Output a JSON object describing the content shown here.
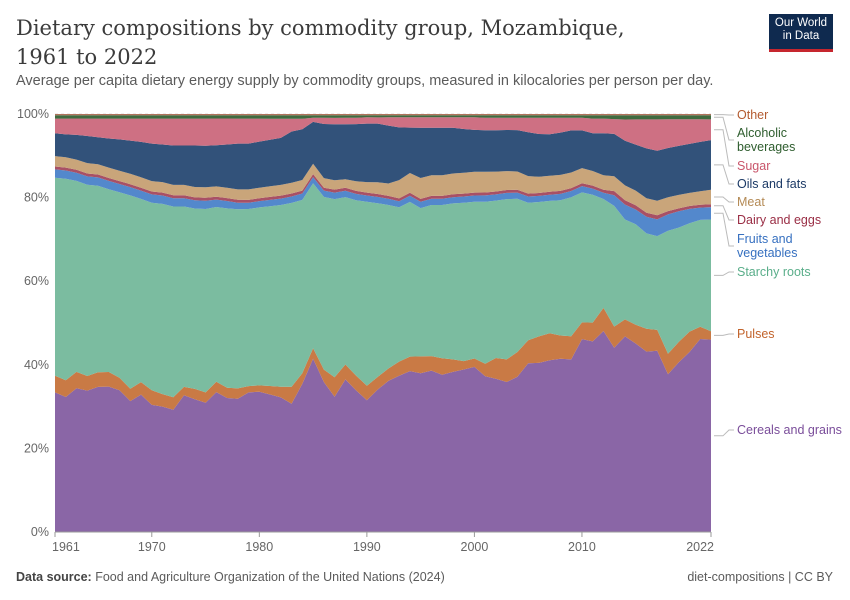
{
  "header": {
    "title": "Dietary compositions by commodity group, Mozambique, 1961 to 2022",
    "subtitle": "Average per capita dietary energy supply by commodity groups, measured in kilocalories per person per day.",
    "logo_line1": "Our World",
    "logo_line2": "in Data"
  },
  "footer": {
    "source_label": "Data source:",
    "source_text": "Food and Agriculture Organization of the United Nations (2024)",
    "right": "diet-compositions | CC BY"
  },
  "chart_data": {
    "type": "area",
    "stacked": "percent",
    "title": "Dietary compositions by commodity group, Mozambique, 1961 to 2022",
    "ylim": [
      0,
      100
    ],
    "y_ticks": [
      "0%",
      "20%",
      "40%",
      "60%",
      "80%",
      "100%"
    ],
    "x_ticks": [
      "1961",
      "1970",
      "1980",
      "1990",
      "2000",
      "2010",
      "2022"
    ],
    "grid": "horizontal dashed",
    "legend": "right, inline labels",
    "x_start": 1961,
    "x_end": 2022,
    "series": [
      {
        "name": "Cereals and grains",
        "color": "#8a66a6",
        "label_color": "#7a4d9a",
        "values": [
          33.5,
          32.5,
          35,
          34,
          35,
          35,
          34,
          31.5,
          33,
          30.5,
          30,
          29.5,
          33,
          32,
          31,
          34,
          32.5,
          32,
          33.5,
          33.5,
          32.5,
          31.5,
          30,
          35,
          41.5,
          36,
          31.5,
          36,
          33.5,
          31.5,
          34,
          36.5,
          38.5,
          39,
          38,
          39,
          38,
          38.5,
          39,
          39.5,
          37.5,
          37,
          36.5,
          37.5,
          40.5,
          41.5,
          41.5,
          41,
          41,
          46,
          45.5,
          48,
          43.5,
          46,
          45,
          43.5,
          43.5,
          38.5,
          41.5,
          44,
          47,
          46.5
        ]
      },
      {
        "name": "Pulses",
        "color": "#c97a45",
        "label_color": "#c2632b",
        "values": [
          4,
          4,
          4,
          3.5,
          3.5,
          3.5,
          3,
          3,
          3,
          3.5,
          3,
          3,
          2,
          2.5,
          2.5,
          2.5,
          2.5,
          2.5,
          1.5,
          1.5,
          2,
          2.5,
          4,
          2.5,
          2.5,
          3,
          4.5,
          3.5,
          3.5,
          3.5,
          3,
          3,
          3.5,
          3.5,
          4,
          3.5,
          4,
          3,
          2,
          2,
          3,
          5,
          5.5,
          6,
          5.5,
          6.5,
          6.5,
          5.5,
          5.5,
          4,
          4.5,
          5.5,
          5,
          4,
          4.5,
          5.5,
          5,
          5,
          5,
          5,
          3,
          2
        ]
      },
      {
        "name": "Starchy roots",
        "color": "#7bbca0",
        "label_color": "#5aae8a",
        "values": [
          47.5,
          48.5,
          46.5,
          46,
          45,
          44,
          44.5,
          46.5,
          44,
          45,
          45.5,
          46,
          43.5,
          43.5,
          44,
          42.5,
          43.5,
          43,
          42.5,
          42.5,
          42.5,
          42.5,
          43,
          41,
          39.5,
          41.5,
          41.5,
          39.5,
          41.5,
          44,
          41.5,
          39.5,
          38,
          37.5,
          35.5,
          36.5,
          37,
          37.5,
          38,
          37.5,
          39,
          38,
          39,
          37,
          33,
          33,
          32,
          32,
          33,
          31,
          30.5,
          26,
          28.5,
          23.5,
          24,
          23,
          22.5,
          30,
          28,
          26.5,
          26,
          27
        ]
      },
      {
        "name": "Fruits and vegetables",
        "color": "#5388cc",
        "label_color": "#3670c0",
        "values": [
          2,
          2,
          2,
          2,
          2,
          2,
          2,
          2,
          2,
          2,
          2,
          2,
          2,
          2,
          2,
          1.8,
          1.8,
          1.6,
          1.5,
          1.5,
          1.5,
          1.5,
          1.5,
          1.5,
          1.5,
          1.5,
          1.5,
          1.5,
          1.5,
          1.5,
          1.5,
          1.5,
          1.5,
          1.5,
          1.5,
          1.5,
          1.5,
          1.5,
          1.5,
          1.5,
          1.5,
          1.5,
          1.5,
          1.5,
          1.5,
          1.5,
          1.5,
          1.5,
          1.5,
          1.5,
          1.5,
          1.5,
          2.5,
          3.5,
          3.5,
          4,
          4,
          4,
          4,
          3.5,
          3,
          3
        ]
      },
      {
        "name": "Dairy and eggs",
        "color": "#a85065",
        "label_color": "#9a2e45",
        "values": [
          0.7,
          0.7,
          0.7,
          0.7,
          0.7,
          0.7,
          0.7,
          0.7,
          0.7,
          0.7,
          0.7,
          0.7,
          0.7,
          0.7,
          0.7,
          0.7,
          0.7,
          0.7,
          0.7,
          0.7,
          0.7,
          0.7,
          0.7,
          0.7,
          0.7,
          0.7,
          0.7,
          0.7,
          0.7,
          0.7,
          0.7,
          0.7,
          0.7,
          0.7,
          0.7,
          0.7,
          0.7,
          0.7,
          0.7,
          0.7,
          0.7,
          0.7,
          0.7,
          0.7,
          0.7,
          0.7,
          0.7,
          0.7,
          0.7,
          0.7,
          0.7,
          0.7,
          1,
          1,
          1,
          1,
          1,
          0.8,
          0.7,
          0.7,
          0.7,
          0.7
        ]
      },
      {
        "name": "Meat",
        "color": "#c9a57a",
        "label_color": "#b48a55",
        "values": [
          2.5,
          2.5,
          2.5,
          2.5,
          2.5,
          2.5,
          2.5,
          2.5,
          2.5,
          2.5,
          2.5,
          2.5,
          2.5,
          2.5,
          2.5,
          2.5,
          2.5,
          2.5,
          2.5,
          2.5,
          2.5,
          2.5,
          2.5,
          2.5,
          2.5,
          2.3,
          2.2,
          2,
          2.3,
          2.5,
          2.8,
          3,
          4.5,
          4.8,
          5,
          5,
          5,
          5,
          5,
          5,
          5,
          4.8,
          4.6,
          4.4,
          4.2,
          4,
          3.9,
          3.8,
          3.7,
          3.6,
          3.5,
          3.5,
          3.5,
          3.5,
          3.5,
          3.5,
          3.5,
          3.4,
          3.3,
          3.2,
          3.3,
          3.5
        ]
      },
      {
        "name": "Oils and fats",
        "color": "#32527a",
        "label_color": "#1c3a66",
        "values": [
          5.5,
          5.5,
          6,
          6.5,
          6.5,
          7,
          7.5,
          8,
          8.5,
          9,
          9,
          9.5,
          9.5,
          10,
          10,
          10,
          10.5,
          11,
          11,
          11,
          11,
          11,
          12,
          12,
          10,
          13,
          13,
          13,
          13.5,
          14,
          14,
          14,
          13,
          11,
          12,
          11.5,
          11.5,
          11,
          10.5,
          10,
          10,
          10,
          10,
          10,
          10.5,
          10.5,
          10,
          10,
          10,
          9,
          9,
          10,
          10,
          10.5,
          11,
          12,
          12,
          12,
          12,
          12,
          12,
          12
        ]
      },
      {
        "name": "Sugar",
        "color": "#ce7083",
        "label_color": "#c9566b",
        "values": [
          3.5,
          3.8,
          4,
          4.2,
          4.5,
          4.8,
          5,
          5.3,
          5.6,
          6,
          6.2,
          6.5,
          6.5,
          6.5,
          6.5,
          6.5,
          6.3,
          6,
          6,
          5.5,
          5,
          4.5,
          3,
          2.5,
          1,
          1.5,
          1.5,
          1.5,
          1.5,
          1.5,
          1.5,
          2,
          2.5,
          2.5,
          2.5,
          2.5,
          2.5,
          2.5,
          2.8,
          3,
          3,
          3,
          3,
          3,
          3.5,
          4,
          4,
          3.5,
          3,
          3,
          3.5,
          3.5,
          3.5,
          5,
          6,
          7,
          7.5,
          7,
          6.5,
          6,
          5.5,
          5
        ]
      },
      {
        "name": "Alcoholic beverages",
        "color": "#3f6b3f",
        "label_color": "#2e5d2e",
        "values": [
          0.8,
          0.8,
          0.8,
          0.8,
          0.8,
          0.8,
          0.8,
          0.8,
          0.8,
          0.8,
          0.8,
          0.8,
          0.8,
          0.8,
          0.8,
          0.8,
          0.8,
          0.8,
          0.8,
          0.8,
          0.8,
          0.8,
          0.8,
          0.8,
          0.6,
          0.6,
          0.6,
          0.6,
          0.6,
          0.5,
          0.5,
          0.5,
          0.5,
          0.5,
          0.5,
          0.5,
          0.5,
          0.5,
          0.5,
          0.5,
          0.6,
          0.6,
          0.6,
          0.6,
          0.6,
          0.6,
          0.6,
          0.6,
          0.6,
          0.6,
          0.8,
          0.8,
          0.9,
          1,
          1,
          1,
          1,
          1,
          1,
          1,
          1,
          1
        ]
      },
      {
        "name": "Other",
        "color": "#b0725b",
        "label_color": "#b35b30",
        "values": [
          0.3,
          0.3,
          0.3,
          0.3,
          0.3,
          0.3,
          0.3,
          0.3,
          0.3,
          0.3,
          0.3,
          0.3,
          0.3,
          0.3,
          0.3,
          0.3,
          0.3,
          0.3,
          0.3,
          0.3,
          0.3,
          0.3,
          0.3,
          0.3,
          0.3,
          0.3,
          0.3,
          0.3,
          0.3,
          0.3,
          0.3,
          0.3,
          0.3,
          0.3,
          0.3,
          0.3,
          0.3,
          0.3,
          0.3,
          0.3,
          0.3,
          0.3,
          0.3,
          0.3,
          0.3,
          0.3,
          0.3,
          0.3,
          0.3,
          0.3,
          0.3,
          0.3,
          0.3,
          0.3,
          0.3,
          0.3,
          0.3,
          0.3,
          0.3,
          0.3,
          0.3,
          0.3
        ]
      }
    ]
  },
  "labels": {
    "other": "Other",
    "alcohol_1": "Alcoholic",
    "alcohol_2": "beverages",
    "sugar": "Sugar",
    "oils": "Oils and fats",
    "meat": "Meat",
    "dairy": "Dairy and eggs",
    "fruits_1": "Fruits and",
    "fruits_2": "vegetables",
    "starchy": "Starchy roots",
    "pulses": "Pulses",
    "cereals": "Cereals and grains"
  }
}
